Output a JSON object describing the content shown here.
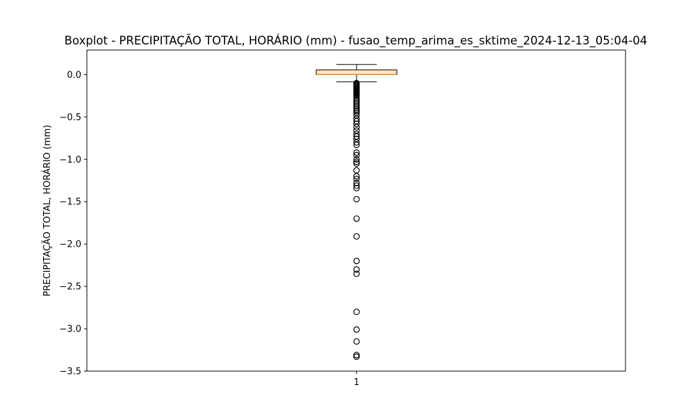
{
  "chart_data": {
    "type": "boxplot",
    "title": "Boxplot - PRECIPITAÇÃO TOTAL, HORÁRIO (mm) - fusao_temp_arima_es_sktime_2024-12-13_05:04-04",
    "xlabel": "",
    "ylabel": "PRECIPITAÇÃO TOTAL, HORÁRIO (mm)",
    "ylim": [
      -3.5,
      0.29
    ],
    "yticks": [
      "0.0",
      "−0.5",
      "−1.0",
      "−1.5",
      "−2.0",
      "−2.5",
      "−3.0",
      "−3.5"
    ],
    "ytick_values": [
      0.0,
      -0.5,
      -1.0,
      -1.5,
      -2.0,
      -2.5,
      -3.0,
      -3.5
    ],
    "categories": [
      "1"
    ],
    "box": {
      "q1": 0.0,
      "median": 0.0,
      "q3": 0.055,
      "whisker_low": -0.085,
      "whisker_high": 0.12
    },
    "outliers": [
      -0.1,
      -0.11,
      -0.12,
      -0.13,
      -0.14,
      -0.15,
      -0.16,
      -0.17,
      -0.18,
      -0.19,
      -0.2,
      -0.21,
      -0.22,
      -0.23,
      -0.24,
      -0.25,
      -0.27,
      -0.29,
      -0.31,
      -0.33,
      -0.35,
      -0.37,
      -0.39,
      -0.41,
      -0.43,
      -0.45,
      -0.48,
      -0.52,
      -0.55,
      -0.58,
      -0.62,
      -0.66,
      -0.7,
      -0.73,
      -0.76,
      -0.8,
      -0.83,
      -0.92,
      -0.95,
      -1.0,
      -1.03,
      -1.05,
      -1.13,
      -1.2,
      -1.23,
      -1.28,
      -1.31,
      -1.34,
      -1.47,
      -1.7,
      -1.91,
      -2.2,
      -2.3,
      -2.35,
      -2.8,
      -3.01,
      -3.15,
      -3.31,
      -3.33
    ],
    "box_color": "#ffe4c4",
    "median_color": "#ff7f0e",
    "grid": false,
    "legend": "none"
  }
}
